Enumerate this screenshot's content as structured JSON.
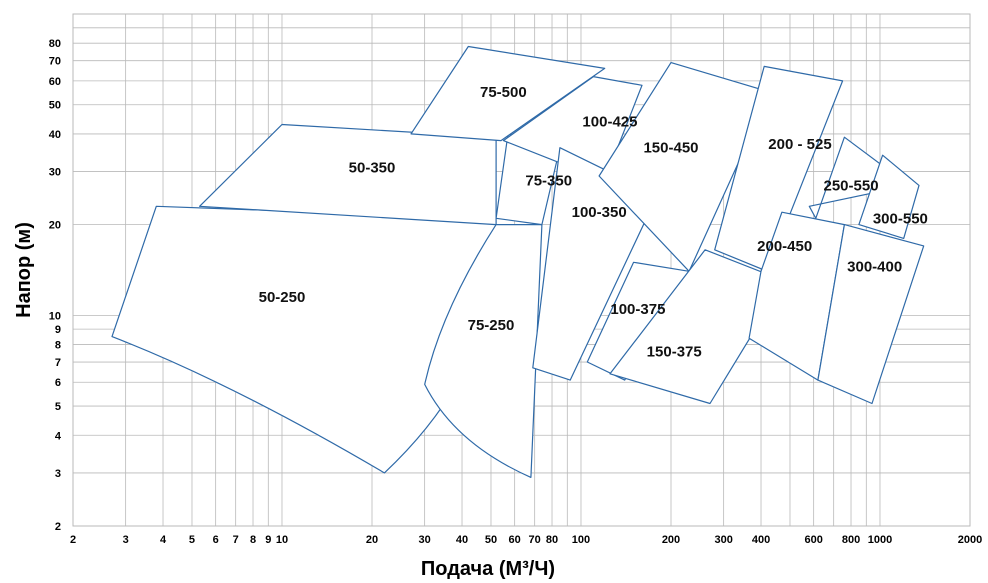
{
  "chart_data": {
    "type": "area",
    "title": "",
    "xlabel": "Подача (М³/Ч)",
    "ylabel": "Напор (м)",
    "xscale": "log",
    "yscale": "log",
    "xlim": [
      2,
      2000
    ],
    "ylim": [
      2,
      100
    ],
    "grid": true,
    "x_tick_labels": [
      "2",
      "3",
      "4",
      "5",
      "6",
      "7",
      "8",
      "9",
      "10",
      "20",
      "30",
      "40",
      "50",
      "60",
      "70",
      "80",
      "100",
      "200",
      "300",
      "400",
      "600",
      "800",
      "1000",
      "2000"
    ],
    "y_tick_labels": [
      "2",
      "3",
      "4",
      "5",
      "6",
      "7",
      "8",
      "9",
      "10",
      "20",
      "30",
      "40",
      "50",
      "60",
      "70",
      "80"
    ],
    "series": [
      {
        "name": "50-250",
        "label_at": [
          10,
          11.5
        ],
        "points": [
          [
            2.7,
            8.5
          ],
          [
            3.8,
            23
          ],
          [
            50,
            21
          ],
          [
            52,
            20
          ],
          [
            22,
            3
          ]
        ],
        "curved_edge": "bottom"
      },
      {
        "name": "50-350",
        "label_at": [
          20,
          31
        ],
        "points": [
          [
            5.3,
            23
          ],
          [
            10,
            43
          ],
          [
            52,
            39
          ],
          [
            52,
            20
          ]
        ]
      },
      {
        "name": "75-250",
        "label_at": [
          50,
          9.3
        ],
        "points": [
          [
            52,
            20
          ],
          [
            74,
            20
          ],
          [
            68,
            2.9
          ],
          [
            30,
            5.9
          ]
        ],
        "curved_edge": "bottom"
      },
      {
        "name": "75-350",
        "label_at": [
          78,
          28
        ],
        "points": [
          [
            52,
            21
          ],
          [
            57,
            40
          ],
          [
            85,
            36
          ],
          [
            74,
            20
          ]
        ]
      },
      {
        "name": "75-500",
        "label_at": [
          55,
          55
        ],
        "points": [
          [
            27,
            40
          ],
          [
            42,
            78
          ],
          [
            120,
            66
          ],
          [
            54,
            38
          ]
        ]
      },
      {
        "name": "100-425",
        "label_at": [
          125,
          44
        ],
        "points": [
          [
            55,
            38
          ],
          [
            110,
            62
          ],
          [
            160,
            58
          ],
          [
            120,
            28
          ]
        ]
      },
      {
        "name": "100-350",
        "label_at": [
          115,
          22
        ],
        "points": [
          [
            85,
            36
          ],
          [
            180,
            25
          ],
          [
            92,
            6.1
          ],
          [
            69,
            6.7
          ]
        ]
      },
      {
        "name": "150-450",
        "label_at": [
          200,
          36
        ],
        "points": [
          [
            115,
            29
          ],
          [
            200,
            69
          ],
          [
            430,
            55
          ],
          [
            230,
            14
          ]
        ]
      },
      {
        "name": "100-375",
        "label_at": [
          155,
          10.5
        ],
        "points": [
          [
            150,
            15
          ],
          [
            230,
            14
          ],
          [
            140,
            6.1
          ],
          [
            105,
            7
          ]
        ]
      },
      {
        "name": "150-375",
        "label_at": [
          205,
          7.6
        ],
        "points": [
          [
            260,
            16.5
          ],
          [
            480,
            13
          ],
          [
            270,
            5.1
          ],
          [
            125,
            6.4
          ]
        ]
      },
      {
        "name": "200 - 525",
        "label_at": [
          540,
          37
        ],
        "points": [
          [
            280,
            16.5
          ],
          [
            410,
            67
          ],
          [
            750,
            60
          ],
          [
            420,
            14
          ]
        ]
      },
      {
        "name": "250-550",
        "label_at": [
          800,
          27
        ],
        "points": [
          [
            610,
            21
          ],
          [
            760,
            39
          ],
          [
            1250,
            27
          ],
          [
            580,
            23
          ]
        ]
      },
      {
        "name": "300-550",
        "label_at": [
          1170,
          21
        ],
        "points": [
          [
            850,
            20
          ],
          [
            1020,
            34
          ],
          [
            1350,
            27
          ],
          [
            1200,
            18
          ]
        ]
      },
      {
        "name": "200-450",
        "label_at": [
          480,
          17
        ],
        "points": [
          [
            400,
            14
          ],
          [
            470,
            22
          ],
          [
            760,
            20
          ],
          [
            620,
            6.1
          ],
          [
            365,
            8.4
          ]
        ]
      },
      {
        "name": "300-400",
        "label_at": [
          960,
          14.5
        ],
        "points": [
          [
            760,
            20
          ],
          [
            1400,
            17
          ],
          [
            940,
            5.1
          ],
          [
            620,
            6.1
          ]
        ]
      }
    ]
  }
}
